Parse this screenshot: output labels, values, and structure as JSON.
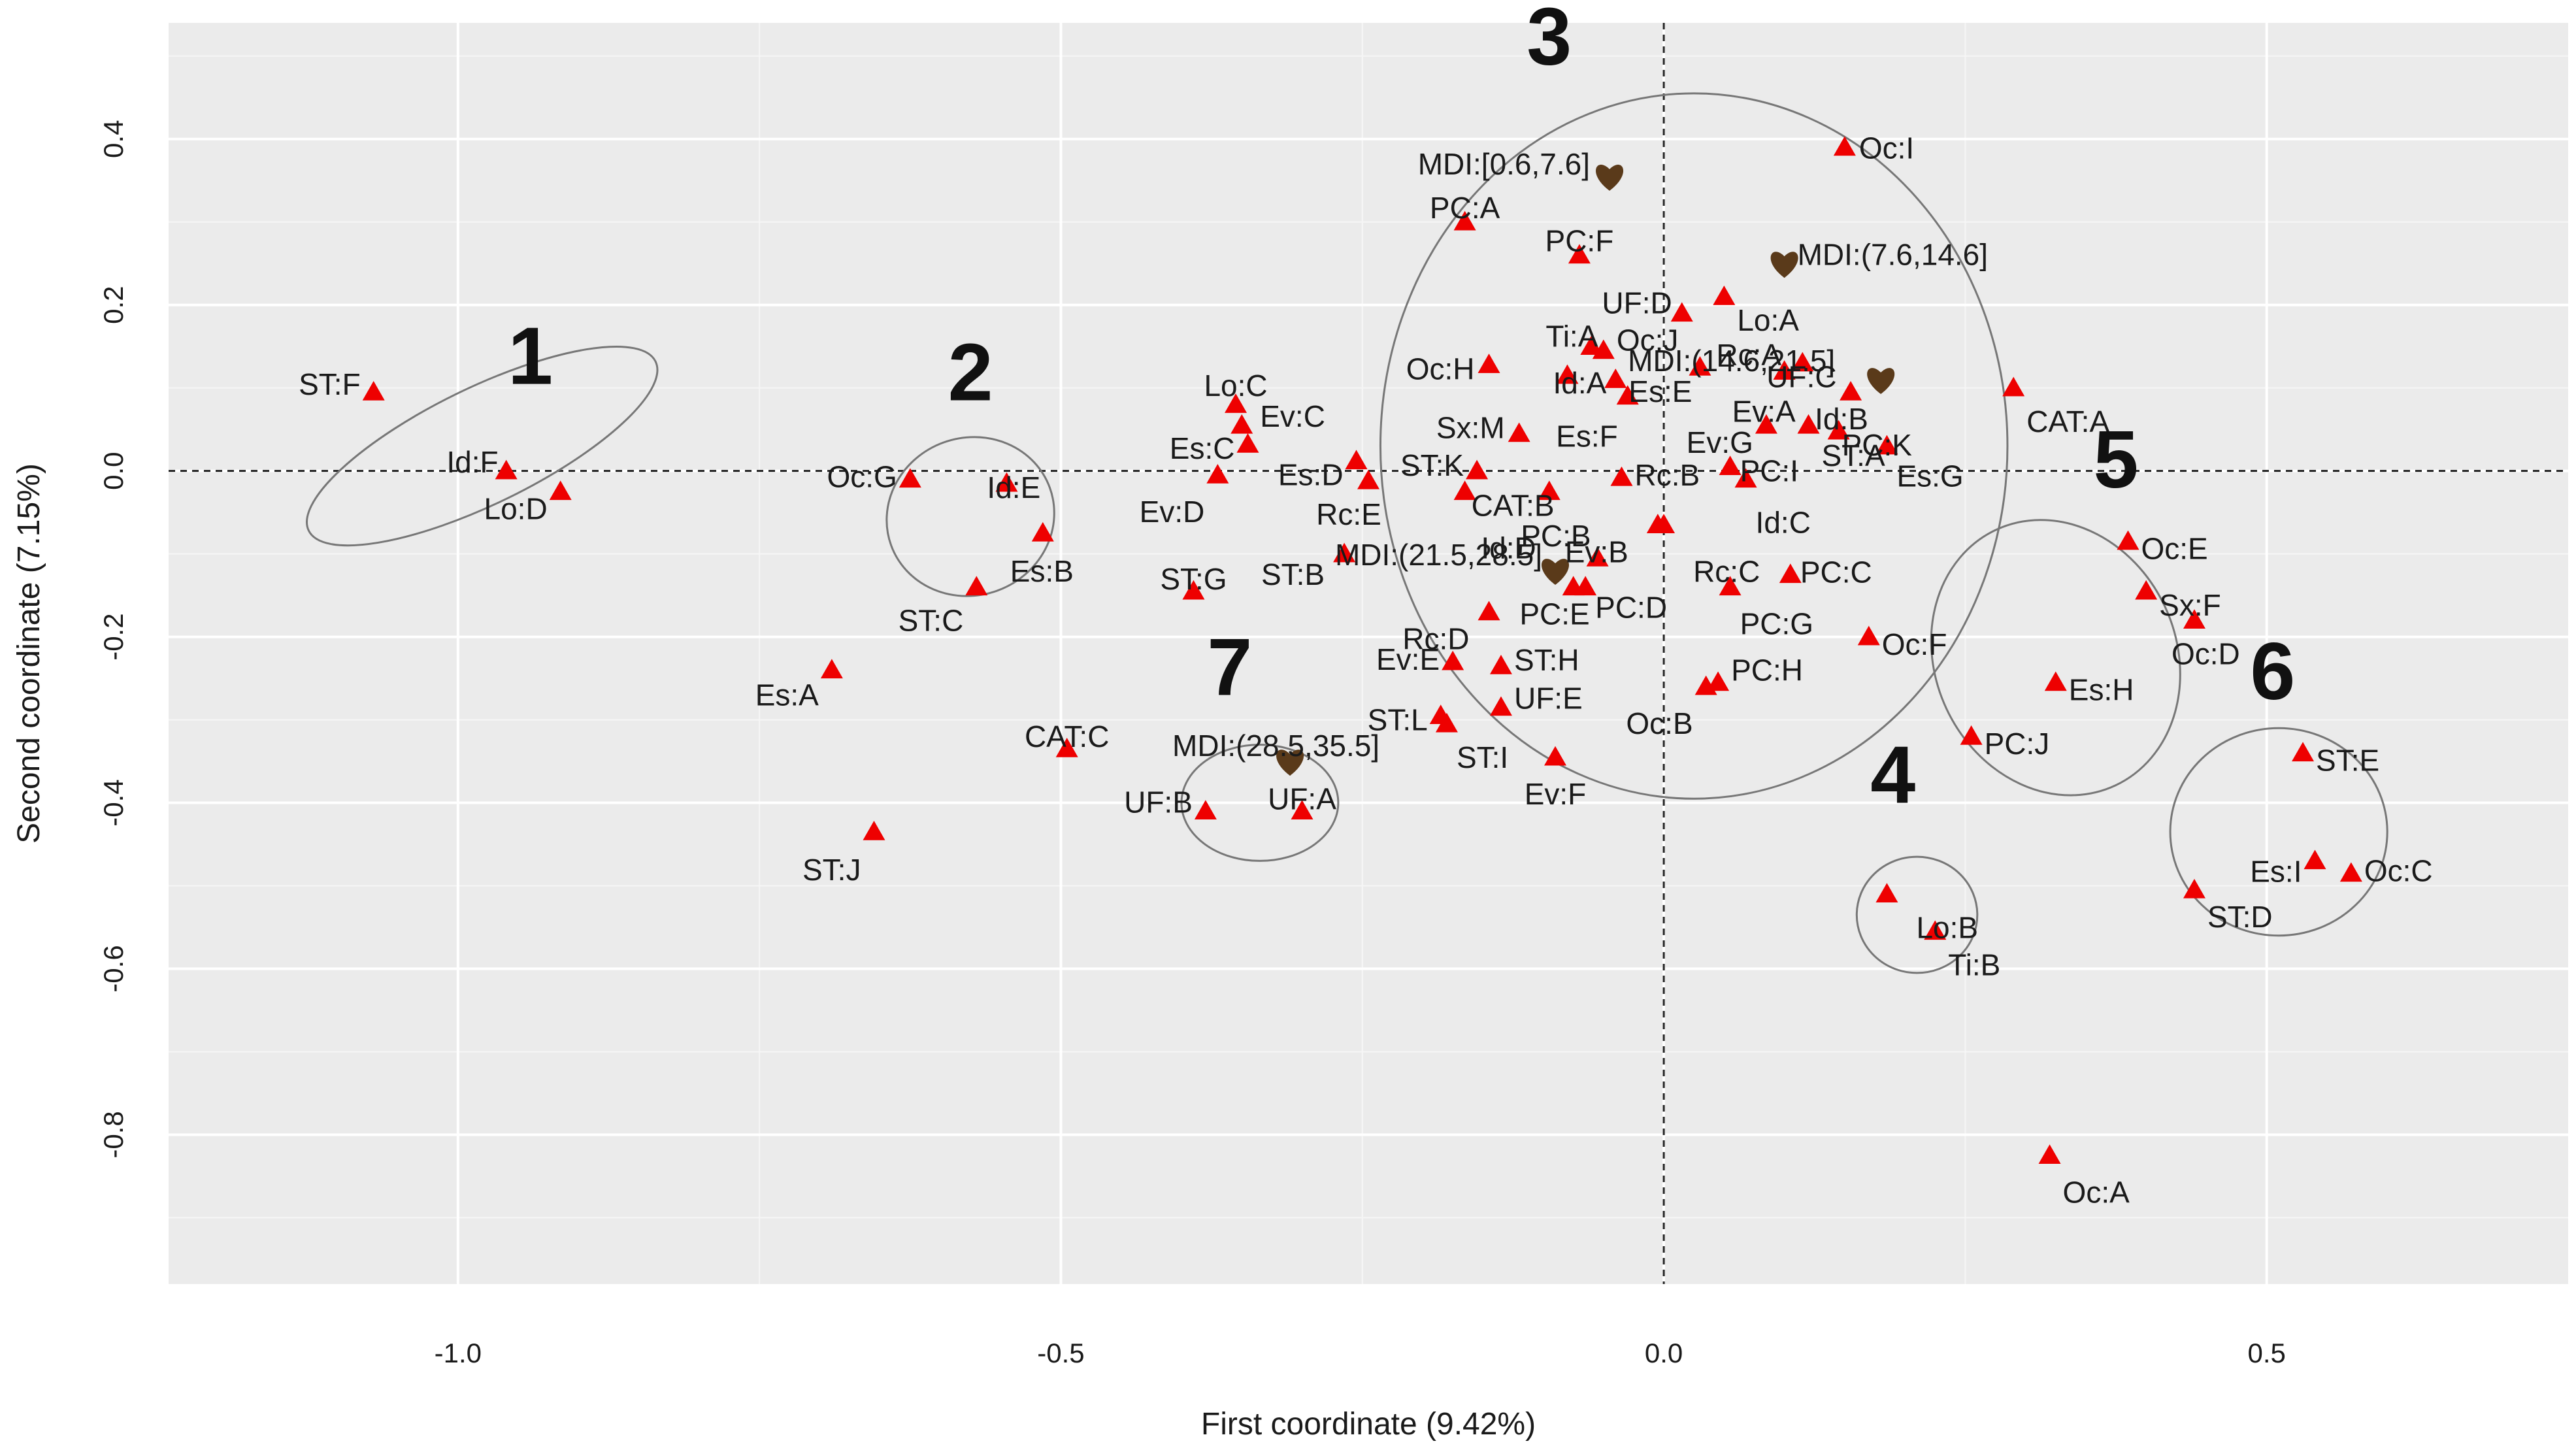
{
  "chart_data": {
    "type": "scatter",
    "xlabel": "First coordinate (9.42%)",
    "ylabel": "Second coordinate (7.15%)",
    "xlim": [
      -1.24,
      0.75
    ],
    "ylim": [
      -0.98,
      0.54
    ],
    "xticks": [
      -1.0,
      -0.5,
      0.0,
      0.5
    ],
    "xtick_labels": [
      "-1.0",
      "-0.5",
      "0.0",
      "0.5"
    ],
    "yticks": [
      0.4,
      0.2,
      0.0,
      -0.2,
      -0.4,
      -0.6,
      -0.8
    ],
    "ytick_labels": [
      "0.4",
      "0.2",
      "0.0",
      "-0.2",
      "-0.4",
      "-0.6",
      "-0.8"
    ],
    "grid": true,
    "colors": {
      "panel": "#ebebeb",
      "grid": "#ffffff",
      "point": "#ee0000",
      "supplementary": "#5a3a1a",
      "ellipse": "#777777",
      "reference": "#222222"
    },
    "points": [
      {
        "label": "ST:F",
        "x": -1.07,
        "y": 0.095
      },
      {
        "label": "Id:F",
        "x": -0.96,
        "y": 0.0
      },
      {
        "label": "Lo:D",
        "x": -0.915,
        "y": -0.025
      },
      {
        "label": "Oc:G",
        "x": -0.625,
        "y": -0.01
      },
      {
        "label": "Id:E",
        "x": -0.545,
        "y": -0.015
      },
      {
        "label": "Es:B",
        "x": -0.515,
        "y": -0.075
      },
      {
        "label": "ST:C",
        "x": -0.57,
        "y": -0.14
      },
      {
        "label": "Es:A",
        "x": -0.69,
        "y": -0.24
      },
      {
        "label": "ST:J",
        "x": -0.655,
        "y": -0.435
      },
      {
        "label": "CAT:C",
        "x": -0.495,
        "y": -0.335
      },
      {
        "label": "Lo:C",
        "x": -0.355,
        "y": 0.08
      },
      {
        "label": "Ev:C",
        "x": -0.35,
        "y": 0.055
      },
      {
        "label": "Es:C",
        "x": -0.345,
        "y": 0.032
      },
      {
        "label": "Ev:D",
        "x": -0.37,
        "y": -0.005
      },
      {
        "label": "ST:G",
        "x": -0.39,
        "y": -0.145
      },
      {
        "label": "Es:D",
        "x": -0.255,
        "y": 0.012
      },
      {
        "label": "Rc:E",
        "x": -0.245,
        "y": -0.012
      },
      {
        "label": "ST:B",
        "x": -0.265,
        "y": -0.1
      },
      {
        "label": "ST:K",
        "x": -0.155,
        "y": 0.0
      },
      {
        "label": "Sx:M",
        "x": -0.12,
        "y": 0.045
      },
      {
        "label": "Oc:H",
        "x": -0.145,
        "y": 0.128
      },
      {
        "label": "Ti:A",
        "x": -0.06,
        "y": 0.15
      },
      {
        "label": "Oc:J",
        "x": -0.05,
        "y": 0.145
      },
      {
        "label": "Id:A",
        "x": -0.08,
        "y": 0.115
      },
      {
        "label": "Es:E",
        "x": -0.04,
        "y": 0.11
      },
      {
        "label": "Es:F",
        "x": -0.03,
        "y": 0.09
      },
      {
        "label": "UF:D",
        "x": 0.015,
        "y": 0.19
      },
      {
        "label": "Lo:A",
        "x": 0.05,
        "y": 0.21
      },
      {
        "label": "PC:A",
        "x": -0.165,
        "y": 0.3
      },
      {
        "label": "PC:F",
        "x": -0.07,
        "y": 0.26
      },
      {
        "label": "Rc:A",
        "x": 0.03,
        "y": 0.125
      },
      {
        "label": "Ev:A",
        "x": 0.1,
        "y": 0.12
      },
      {
        "label": "UF:C",
        "x": 0.115,
        "y": 0.13
      },
      {
        "label": "Id:B",
        "x": 0.155,
        "y": 0.095
      },
      {
        "label": "ST:A",
        "x": 0.12,
        "y": 0.055
      },
      {
        "label": "Ev:G",
        "x": 0.085,
        "y": 0.055
      },
      {
        "label": "PC:K",
        "x": 0.145,
        "y": 0.048
      },
      {
        "label": "Es:G",
        "x": 0.185,
        "y": 0.03
      },
      {
        "label": "CAT:A",
        "x": 0.29,
        "y": 0.1
      },
      {
        "label": "Oc:I",
        "x": 0.15,
        "y": 0.39
      },
      {
        "label": "CAT:B",
        "x": -0.165,
        "y": -0.025
      },
      {
        "label": "Id:D",
        "x": -0.095,
        "y": -0.025
      },
      {
        "label": "Rc:B",
        "x": -0.035,
        "y": -0.008
      },
      {
        "label": "PC:I",
        "x": 0.055,
        "y": 0.005
      },
      {
        "label": "Id:C",
        "x": 0.068,
        "y": -0.01
      },
      {
        "label": "Ev:B",
        "x": -0.005,
        "y": -0.065
      },
      {
        "label": "Rc:C",
        "x": 0.0,
        "y": -0.065
      },
      {
        "label": "PC:B",
        "x": -0.055,
        "y": -0.105
      },
      {
        "label": "PC:D",
        "x": -0.065,
        "y": -0.14
      },
      {
        "label": "PC:E",
        "x": -0.075,
        "y": -0.14
      },
      {
        "label": "Rc:D",
        "x": -0.145,
        "y": -0.17
      },
      {
        "label": "PC:C",
        "x": 0.105,
        "y": -0.125
      },
      {
        "label": "PC:G",
        "x": 0.055,
        "y": -0.14
      },
      {
        "label": "Oc:F",
        "x": 0.17,
        "y": -0.2
      },
      {
        "label": "Ev:E",
        "x": -0.175,
        "y": -0.23
      },
      {
        "label": "ST:H",
        "x": -0.135,
        "y": -0.235
      },
      {
        "label": "UF:E",
        "x": -0.135,
        "y": -0.285
      },
      {
        "label": "ST:L",
        "x": -0.185,
        "y": -0.295
      },
      {
        "label": "ST:I",
        "x": -0.18,
        "y": -0.305
      },
      {
        "label": "Ev:F",
        "x": -0.09,
        "y": -0.345
      },
      {
        "label": "PC:H",
        "x": 0.045,
        "y": -0.255
      },
      {
        "label": "Oc:B",
        "x": 0.035,
        "y": -0.26
      },
      {
        "label": "UF:B",
        "x": -0.38,
        "y": -0.41
      },
      {
        "label": "UF:A",
        "x": -0.3,
        "y": -0.41
      },
      {
        "label": "Lo:B",
        "x": 0.185,
        "y": -0.51
      },
      {
        "label": "Ti:B",
        "x": 0.225,
        "y": -0.555
      },
      {
        "label": "Oc:E",
        "x": 0.385,
        "y": -0.085
      },
      {
        "label": "Sx:F",
        "x": 0.4,
        "y": -0.145
      },
      {
        "label": "Oc:D",
        "x": 0.44,
        "y": -0.18
      },
      {
        "label": "Es:H",
        "x": 0.325,
        "y": -0.255
      },
      {
        "label": "PC:J",
        "x": 0.255,
        "y": -0.32
      },
      {
        "label": "ST:E",
        "x": 0.53,
        "y": -0.34
      },
      {
        "label": "Es:I",
        "x": 0.54,
        "y": -0.47
      },
      {
        "label": "Oc:C",
        "x": 0.57,
        "y": -0.485
      },
      {
        "label": "ST:D",
        "x": 0.44,
        "y": -0.505
      },
      {
        "label": "Oc:A",
        "x": 0.32,
        "y": -0.825
      }
    ],
    "supplementary": [
      {
        "label": "MDI:[0.6,7.6]",
        "x": -0.045,
        "y": 0.355
      },
      {
        "label": "MDI:(7.6,14.6]",
        "x": 0.1,
        "y": 0.25
      },
      {
        "label": "MDI:(14.6,21.5]",
        "x": 0.18,
        "y": 0.11
      },
      {
        "label": "MDI:(21.5,28.5]",
        "x": -0.09,
        "y": -0.12
      },
      {
        "label": "MDI:(28.5,35.5]",
        "x": -0.31,
        "y": -0.35
      }
    ],
    "clusters": [
      {
        "id": "1",
        "cx": -0.98,
        "cy": 0.03,
        "rx": 0.16,
        "ry": 0.07,
        "rot": 26,
        "lx": -0.94,
        "ly": 0.105
      },
      {
        "id": "2",
        "cx": -0.575,
        "cy": -0.055,
        "rx": 0.07,
        "ry": 0.095,
        "rot": 20,
        "lx": -0.575,
        "ly": 0.085
      },
      {
        "id": "3",
        "cx": 0.025,
        "cy": 0.03,
        "rx": 0.26,
        "ry": 0.425,
        "rot": 0,
        "lx": -0.095,
        "ly": 0.49
      },
      {
        "id": "4",
        "cx": 0.21,
        "cy": -0.535,
        "rx": 0.05,
        "ry": 0.07,
        "rot": 0,
        "lx": 0.19,
        "ly": -0.4
      },
      {
        "id": "5",
        "cx": 0.325,
        "cy": -0.225,
        "rx": 0.1,
        "ry": 0.17,
        "rot": 25,
        "lx": 0.375,
        "ly": -0.02
      },
      {
        "id": "6",
        "cx": 0.51,
        "cy": -0.435,
        "rx": 0.09,
        "ry": 0.125,
        "rot": 0,
        "lx": 0.505,
        "ly": -0.275
      },
      {
        "id": "7",
        "cx": -0.335,
        "cy": -0.4,
        "rx": 0.065,
        "ry": 0.07,
        "rot": 0,
        "lx": -0.36,
        "ly": -0.27
      }
    ]
  }
}
